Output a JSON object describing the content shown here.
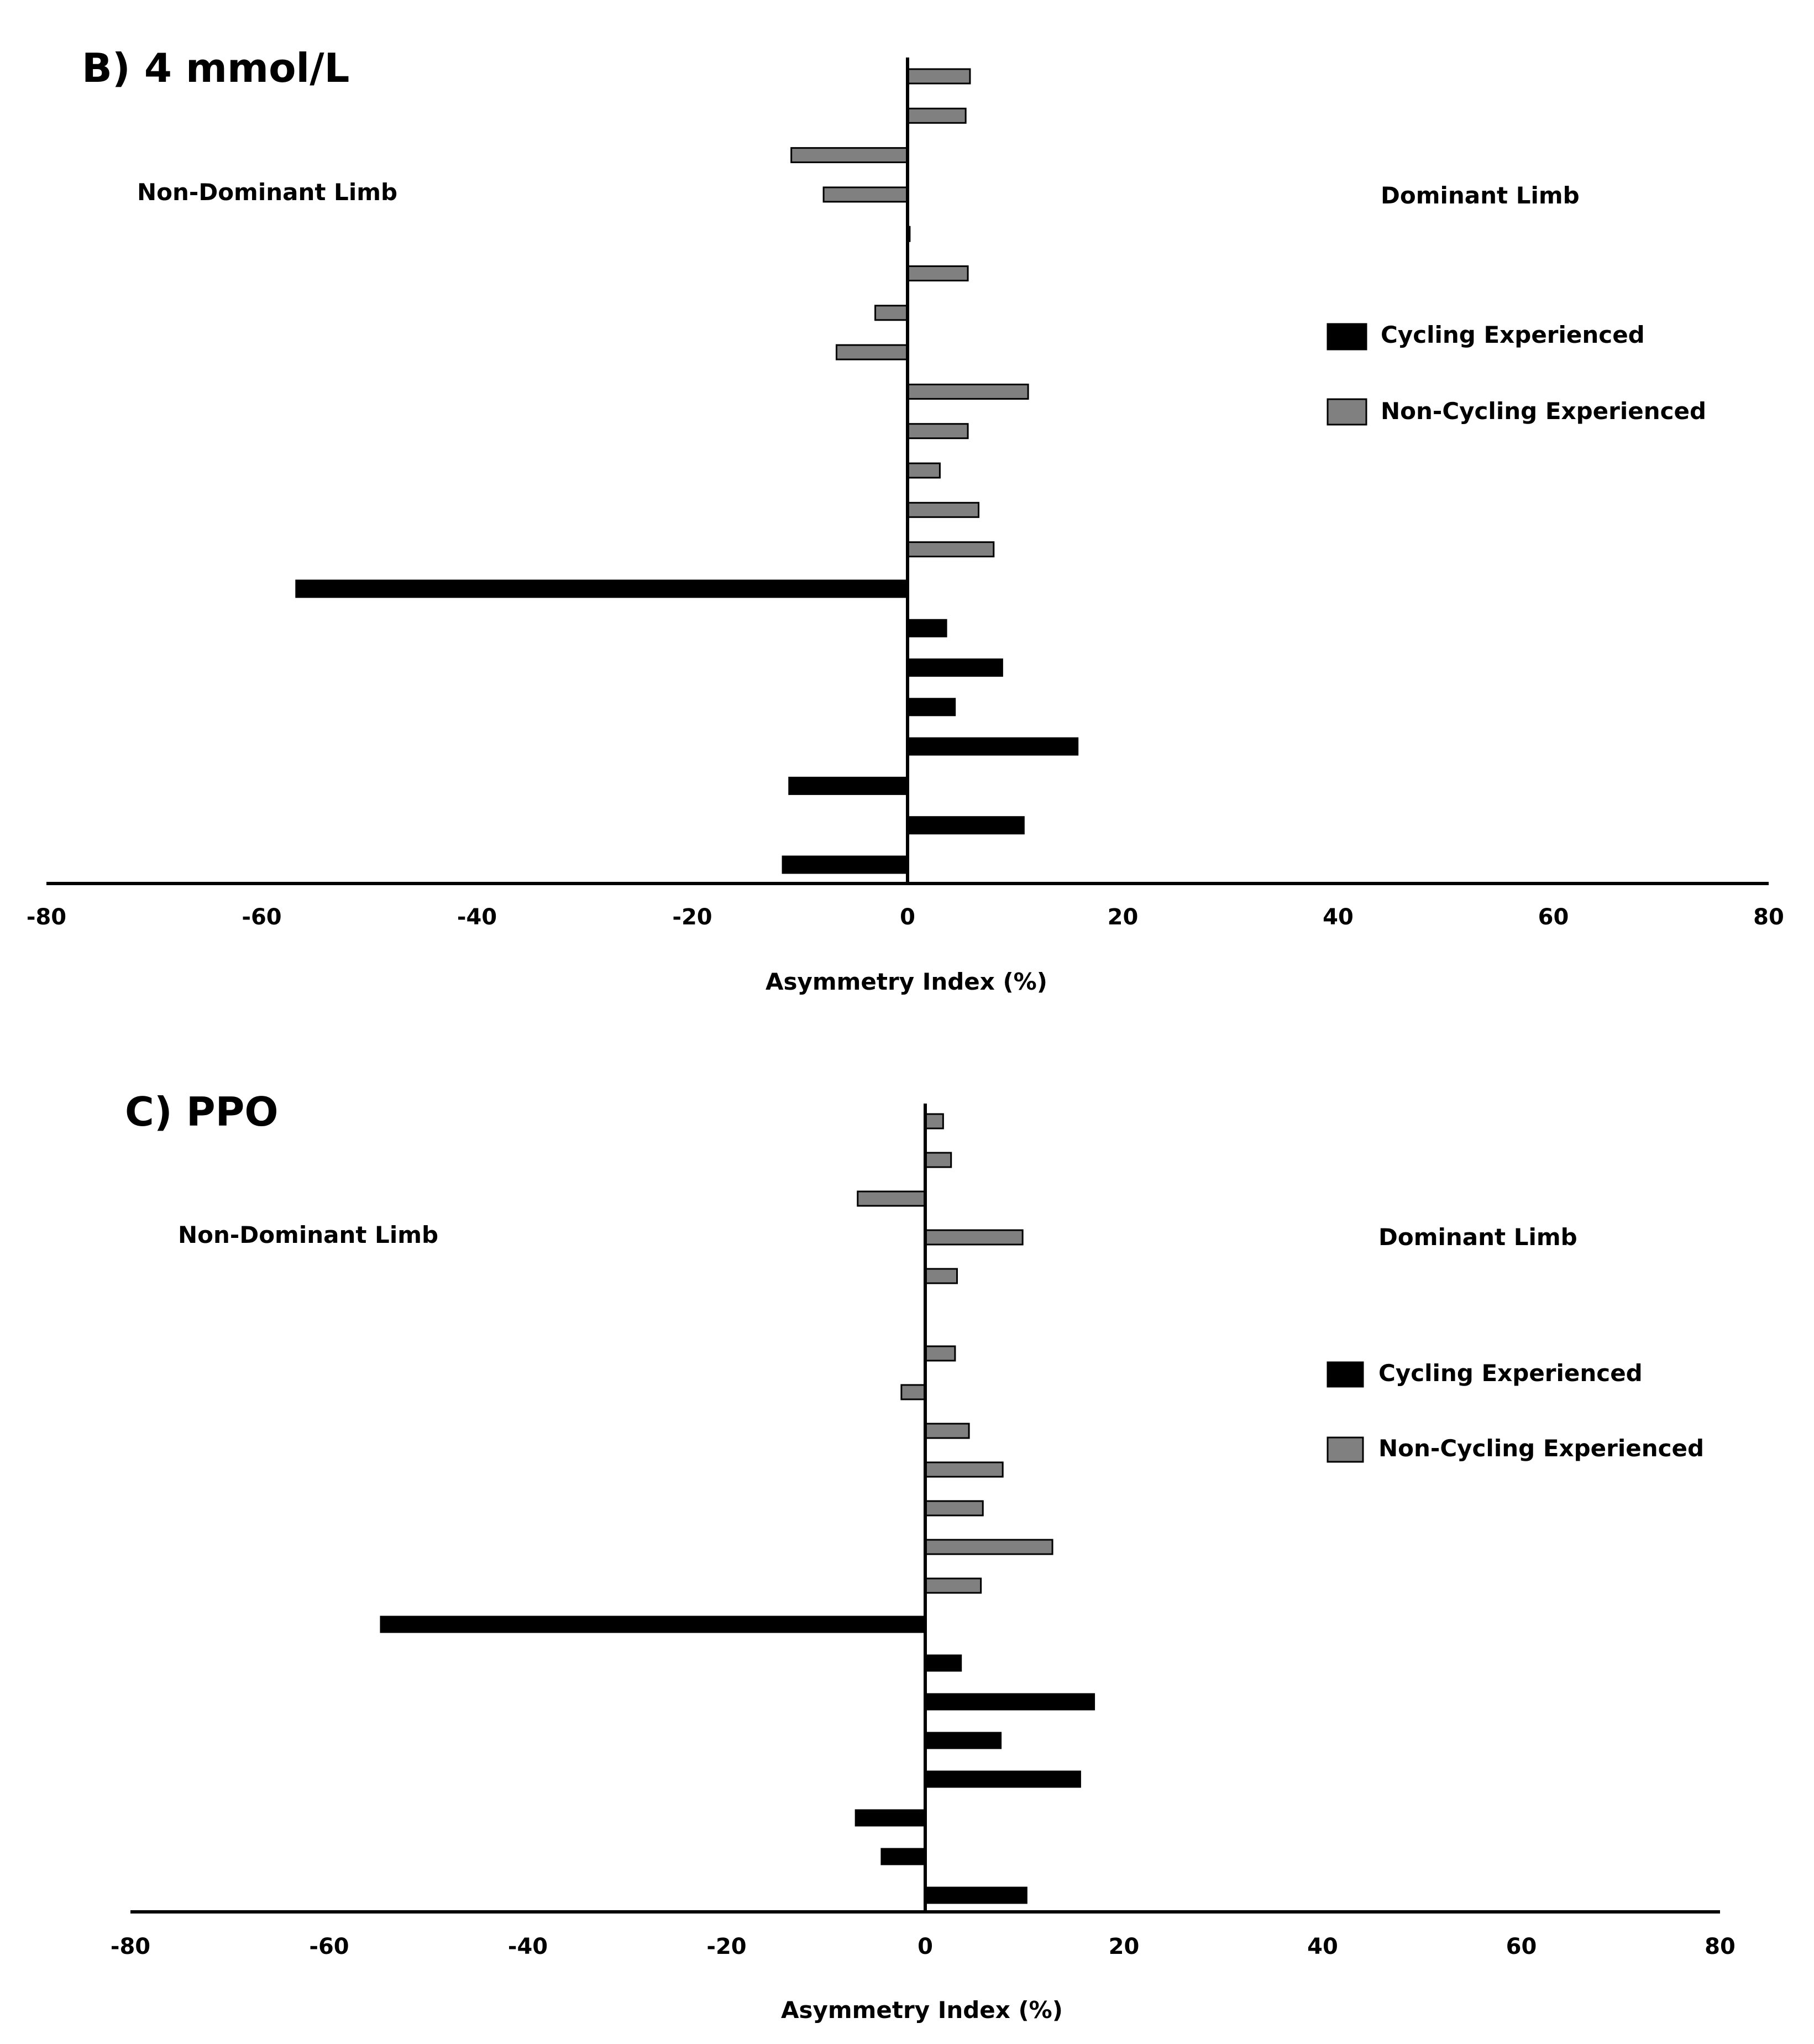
{
  "colors": {
    "cycling": "#000000",
    "non_cycling": "#808080",
    "axis": "#000000"
  },
  "chart_data": [
    {
      "type": "bar",
      "orientation": "horizontal",
      "title": "B) 4 mmol/L",
      "xlabel": "Asymmetry Index (%)",
      "xlim": [
        -80,
        80
      ],
      "xticks": [
        -80,
        -60,
        -40,
        -20,
        0,
        20,
        40,
        60,
        80
      ],
      "left_label": "Non-Dominant Limb",
      "right_label": "Dominant Limb",
      "legend": [
        "Cycling Experienced",
        "Non-Cycling Experienced"
      ],
      "series": [
        {
          "name": "Non-Cycling Experienced",
          "values": [
            5.8,
            5.4,
            -10.8,
            -7.8,
            0.2,
            5.6,
            -3.0,
            -6.6,
            11.2,
            5.6,
            3.0,
            6.6,
            8.0
          ]
        },
        {
          "name": "Cycling Experienced",
          "values": [
            -56.8,
            3.6,
            8.8,
            4.4,
            15.8,
            -11.0,
            10.8,
            -11.6
          ]
        }
      ]
    },
    {
      "type": "bar",
      "orientation": "horizontal",
      "title": "C) PPO",
      "xlabel": "Asymmetry Index (%)",
      "xlim": [
        -80,
        80
      ],
      "xticks": [
        -80,
        -60,
        -40,
        -20,
        0,
        20,
        40,
        60,
        80
      ],
      "left_label": "Non-Dominant Limb",
      "right_label": "Dominant Limb",
      "legend": [
        "Cycling Experienced",
        "Non-Cycling Experienced"
      ],
      "series": [
        {
          "name": "Non-Cycling Experienced",
          "values": [
            1.8,
            2.6,
            -6.8,
            9.8,
            3.2,
            null,
            3.0,
            -2.4,
            4.4,
            7.8,
            5.8,
            12.8,
            5.6
          ]
        },
        {
          "name": "Cycling Experienced",
          "values": [
            -54.8,
            3.6,
            17.0,
            7.6,
            15.6,
            -7.0,
            -4.4,
            10.2
          ]
        }
      ]
    }
  ]
}
